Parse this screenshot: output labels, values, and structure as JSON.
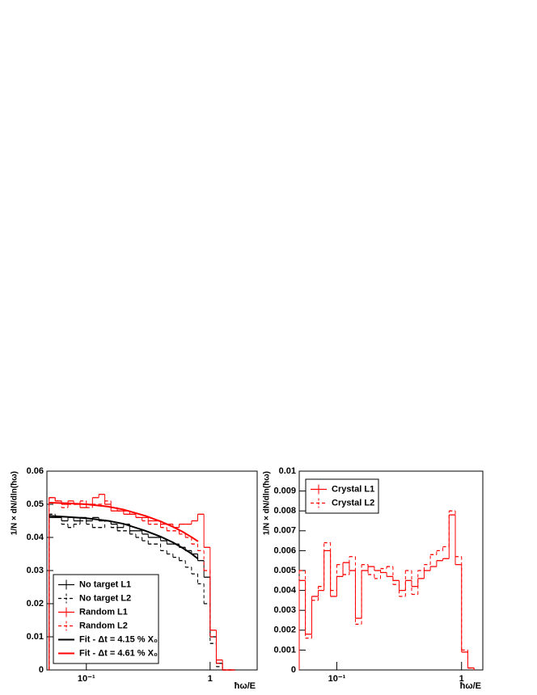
{
  "chart_data": [
    {
      "type": "histogram",
      "xlog": true,
      "xlabel": "ħω/E",
      "ylabel": "1/N × dN/dln(ħω)",
      "xlim": [
        0.048,
        2.4
      ],
      "ylim": [
        0,
        0.06
      ],
      "xticks": [
        {
          "value": 0.1,
          "label": "10⁻¹"
        },
        1
      ],
      "yticks": [
        0,
        0.01,
        0.02,
        0.03,
        0.04,
        0.05,
        0.06
      ],
      "legend": "lower left",
      "bins": [
        0.05,
        0.056,
        0.063,
        0.071,
        0.079,
        0.089,
        0.1,
        0.112,
        0.126,
        0.141,
        0.158,
        0.178,
        0.2,
        0.224,
        0.251,
        0.282,
        0.316,
        0.355,
        0.398,
        0.447,
        0.501,
        0.562,
        0.631,
        0.708,
        0.794,
        0.891,
        1,
        1.122,
        1.259,
        1.413,
        1.585
      ],
      "series": [
        {
          "name": "No target L1",
          "color": "#000000",
          "style": "solid",
          "values": [
            0.046,
            0.046,
            0.045,
            0.046,
            0.045,
            0.046,
            0.045,
            0.046,
            0.045,
            0.045,
            0.044,
            0.043,
            0.044,
            0.042,
            0.042,
            0.041,
            0.04,
            0.04,
            0.039,
            0.038,
            0.038,
            0.037,
            0.036,
            0.035,
            0.033,
            0.028,
            0.01,
            0.002,
            0,
            0
          ]
        },
        {
          "name": "No target L2",
          "color": "#000000",
          "style": "dashed",
          "values": [
            0.047,
            0.046,
            0.044,
            0.043,
            0.044,
            0.045,
            0.044,
            0.043,
            0.043,
            0.045,
            0.043,
            0.042,
            0.042,
            0.041,
            0.04,
            0.039,
            0.038,
            0.038,
            0.036,
            0.035,
            0.034,
            0.033,
            0.031,
            0.029,
            0.026,
            0.02,
            0.008,
            0.001,
            0,
            0
          ]
        },
        {
          "name": "Random L1",
          "color": "#ff0000",
          "style": "solid",
          "values": [
            0.052,
            0.051,
            0.05,
            0.051,
            0.05,
            0.049,
            0.05,
            0.052,
            0.053,
            0.05,
            0.048,
            0.048,
            0.047,
            0.047,
            0.046,
            0.046,
            0.045,
            0.045,
            0.044,
            0.044,
            0.043,
            0.044,
            0.044,
            0.045,
            0.047,
            0.037,
            0.012,
            0.003,
            0,
            0
          ]
        },
        {
          "name": "Random L2",
          "color": "#ff0000",
          "style": "dashed",
          "values": [
            0.052,
            0.051,
            0.049,
            0.05,
            0.05,
            0.051,
            0.049,
            0.05,
            0.05,
            0.051,
            0.049,
            0.048,
            0.048,
            0.047,
            0.046,
            0.045,
            0.044,
            0.044,
            0.043,
            0.042,
            0.042,
            0.041,
            0.04,
            0.038,
            0.036,
            0.03,
            0.01,
            0.002,
            0,
            0
          ]
        }
      ],
      "fit_series": [
        {
          "name": "Fit - Δt = 4.15 % X₀",
          "color": "#000000",
          "x": [
            0.05,
            0.07,
            0.1,
            0.15,
            0.2,
            0.3,
            0.4,
            0.5,
            0.6,
            0.7,
            0.8
          ],
          "values": [
            0.0465,
            0.0462,
            0.0458,
            0.045,
            0.0441,
            0.042,
            0.0402,
            0.0385,
            0.0368,
            0.0352,
            0.0335
          ]
        },
        {
          "name": "Fit - Δt = 4.61 % X₀",
          "color": "#ff0000",
          "x": [
            0.05,
            0.07,
            0.1,
            0.15,
            0.2,
            0.3,
            0.4,
            0.5,
            0.6,
            0.7,
            0.8
          ],
          "values": [
            0.0505,
            0.0503,
            0.05,
            0.0493,
            0.0484,
            0.0465,
            0.0448,
            0.0432,
            0.0417,
            0.0402,
            0.0388
          ]
        }
      ]
    },
    {
      "type": "histogram",
      "xlog": true,
      "xlabel": "ħω/E",
      "ylabel": "1/N × dN/dln(ħω)",
      "xlim": [
        0.05,
        1.48
      ],
      "ylim": [
        0,
        0.01
      ],
      "xticks": [
        {
          "value": 0.1,
          "label": "10⁻¹"
        },
        1
      ],
      "yticks": [
        0,
        0.001,
        0.002,
        0.003,
        0.004,
        0.005,
        0.006,
        0.007,
        0.008,
        0.009,
        0.01
      ],
      "legend": "upper left",
      "bins": [
        0.05,
        0.056,
        0.063,
        0.071,
        0.079,
        0.089,
        0.1,
        0.112,
        0.126,
        0.141,
        0.158,
        0.178,
        0.2,
        0.224,
        0.251,
        0.282,
        0.316,
        0.355,
        0.398,
        0.447,
        0.501,
        0.562,
        0.631,
        0.708,
        0.794,
        0.891,
        1,
        1.122,
        1.259
      ],
      "series": [
        {
          "name": "Crystal L1",
          "color": "#ff0000",
          "style": "solid",
          "values": [
            0.0045,
            0.0018,
            0.0037,
            0.004,
            0.006,
            0.0037,
            0.0047,
            0.0054,
            0.005,
            0.0026,
            0.005,
            0.0052,
            0.005,
            0.0049,
            0.0047,
            0.0045,
            0.004,
            0.0045,
            0.0042,
            0.0046,
            0.005,
            0.0052,
            0.0055,
            0.0056,
            0.0078,
            0.0053,
            0.0009,
            0.0001
          ]
        },
        {
          "name": "Crystal L2",
          "color": "#ff0000",
          "style": "dashed",
          "values": [
            0.005,
            0.0016,
            0.0035,
            0.0042,
            0.0064,
            0.004,
            0.0053,
            0.0048,
            0.0057,
            0.0023,
            0.0053,
            0.0048,
            0.0046,
            0.0051,
            0.0052,
            0.0043,
            0.0037,
            0.005,
            0.0038,
            0.005,
            0.0053,
            0.0058,
            0.006,
            0.0062,
            0.008,
            0.0057,
            0.001,
            0.0001
          ]
        }
      ],
      "fit_series": []
    }
  ]
}
